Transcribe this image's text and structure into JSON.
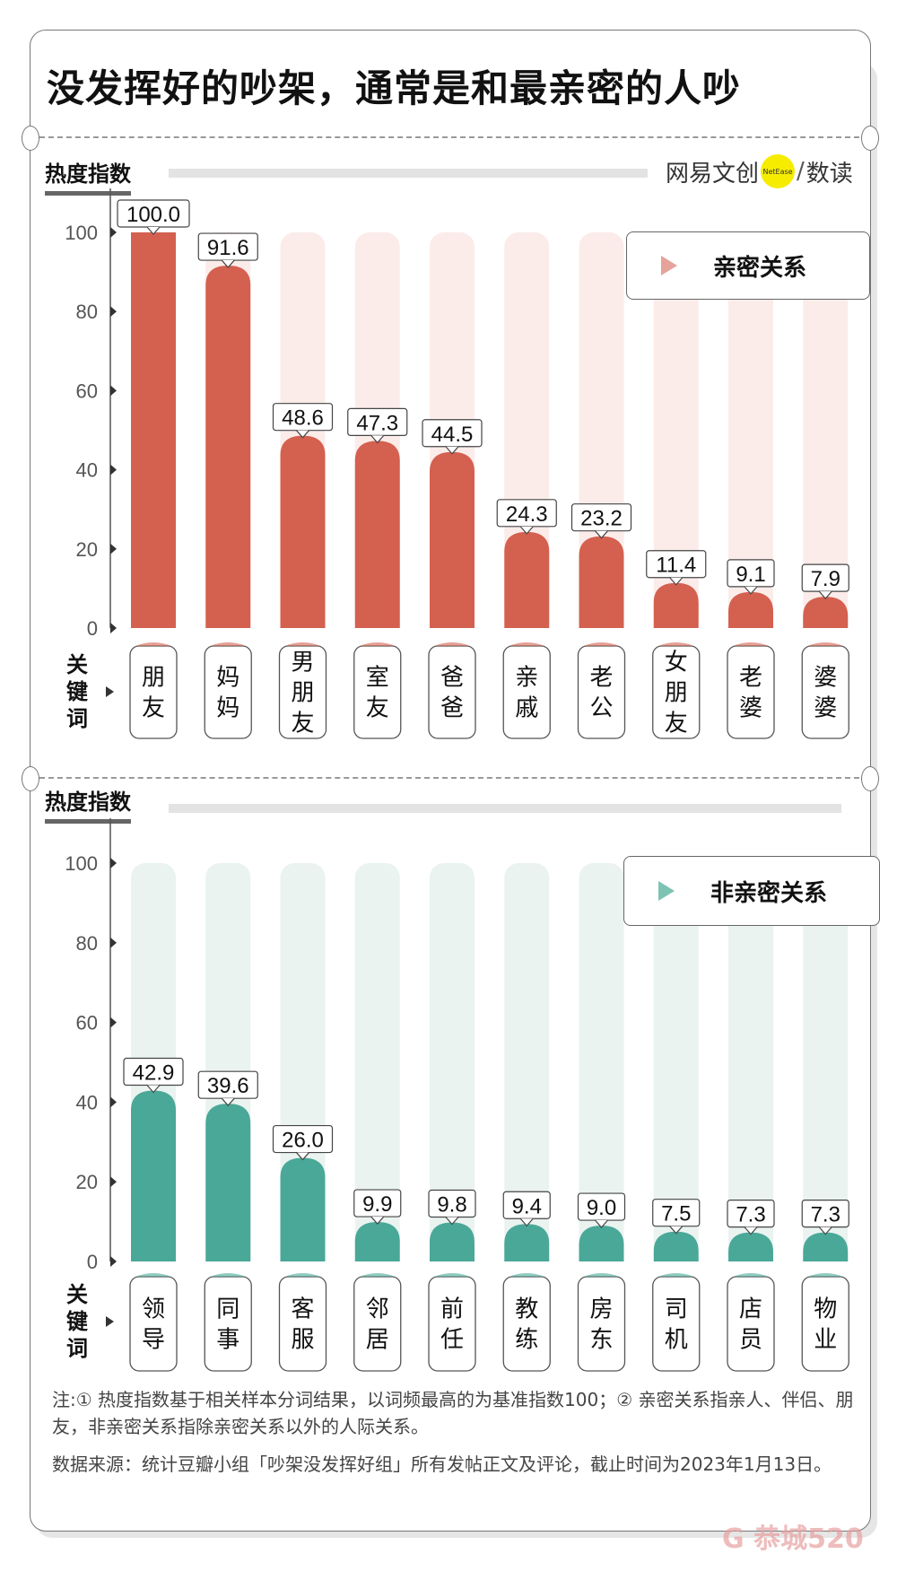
{
  "title": "没发挥好的吵架，通常是和最亲密的人吵",
  "logo": {
    "left": "网易文创",
    "badge": "NetEase",
    "right": "数读"
  },
  "keyword_label": "关键词",
  "chart_data": [
    {
      "type": "bar",
      "ylabel": "热度指数",
      "legend": "亲密关系",
      "color": "#d4604f",
      "bg_color": "#fbecea",
      "ylim": [
        0,
        100
      ],
      "yticks": [
        0,
        20,
        40,
        60,
        80,
        100
      ],
      "categories": [
        "朋友",
        "妈妈",
        "男朋友",
        "室友",
        "爸爸",
        "亲戚",
        "老公",
        "女朋友",
        "老婆",
        "婆婆"
      ],
      "values": [
        100.0,
        91.6,
        48.6,
        47.3,
        44.5,
        24.3,
        23.2,
        11.4,
        9.1,
        7.9
      ],
      "labels": [
        "100.0",
        "91.6",
        "48.6",
        "47.3",
        "44.5",
        "24.3",
        "23.2",
        "11.4",
        "9.1",
        "7.9"
      ]
    },
    {
      "type": "bar",
      "ylabel": "热度指数",
      "legend": "非亲密关系",
      "color": "#4aa898",
      "bg_color": "#eaf3f0",
      "ylim": [
        0,
        100
      ],
      "yticks": [
        0,
        20,
        40,
        60,
        80,
        100
      ],
      "categories": [
        "领导",
        "同事",
        "客服",
        "邻居",
        "前任",
        "教练",
        "房东",
        "司机",
        "店员",
        "物业"
      ],
      "values": [
        42.9,
        39.6,
        26.0,
        9.9,
        9.8,
        9.4,
        9.0,
        7.5,
        7.3,
        7.3
      ],
      "labels": [
        "42.9",
        "39.6",
        "26.0",
        "9.9",
        "9.8",
        "9.4",
        "9.0",
        "7.5",
        "7.3",
        "7.3"
      ]
    }
  ],
  "notes": {
    "note": "注:① 热度指数基于相关样本分词结果，以词频最高的为基准指数100；② 亲密关系指亲人、伴侣、朋友，非亲密关系指除亲密关系以外的人际关系。",
    "source": "数据来源：统计豆瓣小组「吵架没发挥好组」所有发帖正文及评论，截止时间为2023年1月13日。"
  },
  "watermark": "恭城520"
}
